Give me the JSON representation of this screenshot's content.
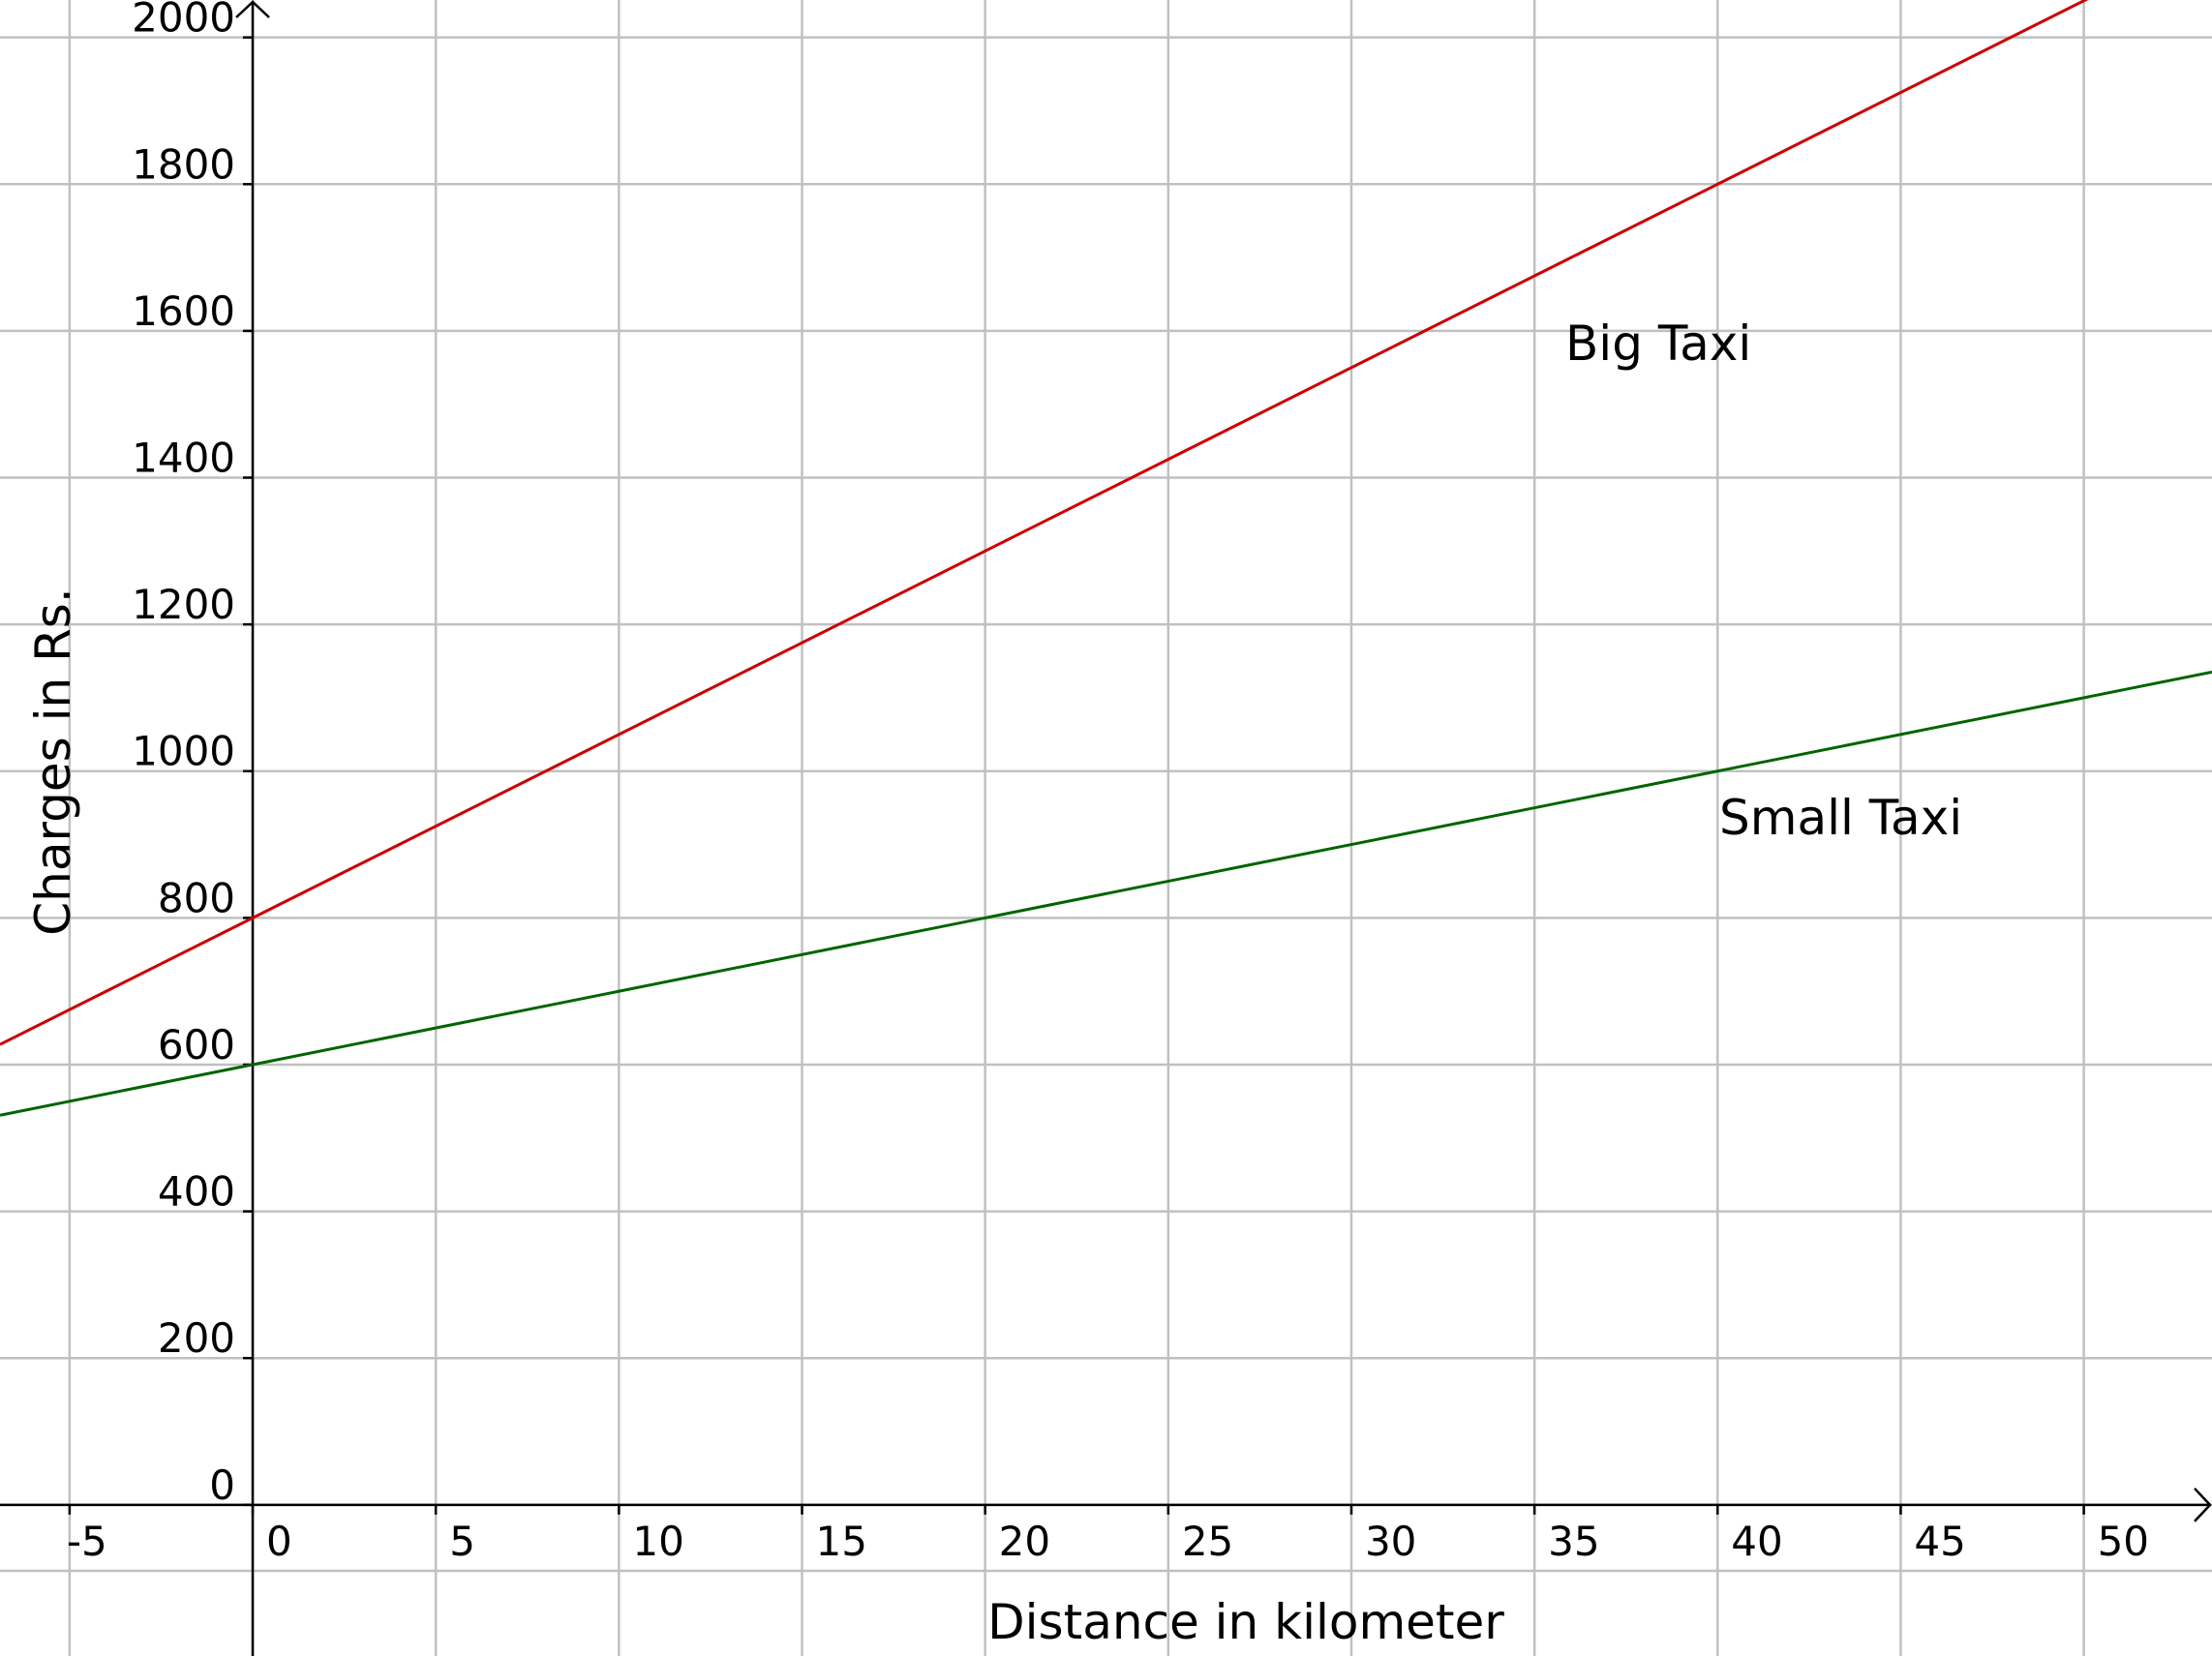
{
  "chart_data": {
    "type": "line",
    "title": "",
    "xlabel": "Distance in kilometer",
    "ylabel": "Charges in Rs.",
    "xlim": [
      -6.9,
      53.5
    ],
    "ylim": [
      -206,
      2051
    ],
    "grid": true,
    "x_ticks": [
      -5,
      0,
      5,
      10,
      15,
      20,
      25,
      30,
      35,
      40,
      45,
      50
    ],
    "y_ticks": [
      0,
      200,
      400,
      600,
      800,
      1000,
      1200,
      1400,
      1600,
      1800,
      2000
    ],
    "series": [
      {
        "name": "Big Taxi",
        "color": "#cc0000",
        "intercept": 800,
        "slope": 25,
        "x": [
          -6.9,
          0,
          20,
          40,
          50.3
        ],
        "y": [
          627.5,
          800,
          1300,
          1800,
          2057.5
        ],
        "label_at": [
          39.5,
          1600
        ]
      },
      {
        "name": "Small Taxi",
        "color": "#006400",
        "intercept": 600,
        "slope": 10,
        "x": [
          -6.9,
          0,
          20,
          40,
          53.5
        ],
        "y": [
          531,
          600,
          800,
          1000,
          1135
        ],
        "label_at": [
          43.5,
          930
        ]
      }
    ]
  }
}
